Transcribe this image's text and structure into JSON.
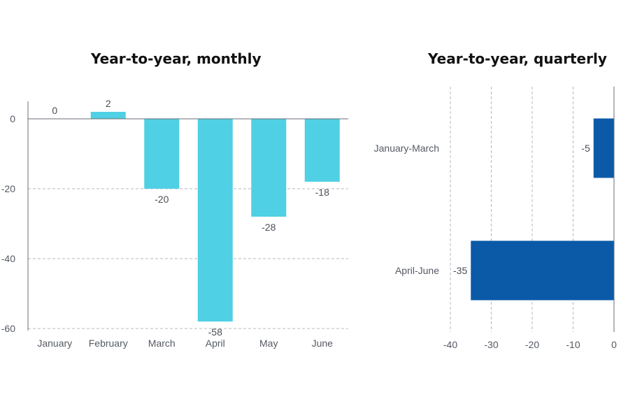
{
  "titles": {
    "monthly": "Year-to-year, monthly",
    "quarterly": "Year-to-year, quarterly"
  },
  "colors": {
    "monthly_bar": "#4fd0e4",
    "quarterly_bar": "#0b5aa8",
    "grid": "#b5b8bd",
    "axis": "#6a6e75",
    "text": "#4a4e56"
  },
  "chart_data": [
    {
      "type": "bar",
      "orientation": "vertical",
      "title": "Year-to-year, monthly",
      "categories": [
        "January",
        "February",
        "March",
        "April",
        "May",
        "June"
      ],
      "values": [
        0,
        2,
        -20,
        -58,
        -28,
        -18
      ],
      "data_labels": [
        "0",
        "2",
        "-20",
        "-58",
        "-28",
        "-18"
      ],
      "yticks": [
        "0",
        "-20",
        "-40",
        "-60"
      ],
      "ylim": [
        -60,
        5
      ],
      "grid": true
    },
    {
      "type": "bar",
      "orientation": "horizontal",
      "title": "Year-to-year, quarterly",
      "categories": [
        "January-March",
        "April-June"
      ],
      "values": [
        -5,
        -35
      ],
      "data_labels": [
        "-5",
        "-35"
      ],
      "xticks": [
        "-40",
        "-30",
        "-20",
        "-10",
        "0"
      ],
      "xlim": [
        -40,
        0
      ],
      "grid": true
    }
  ]
}
